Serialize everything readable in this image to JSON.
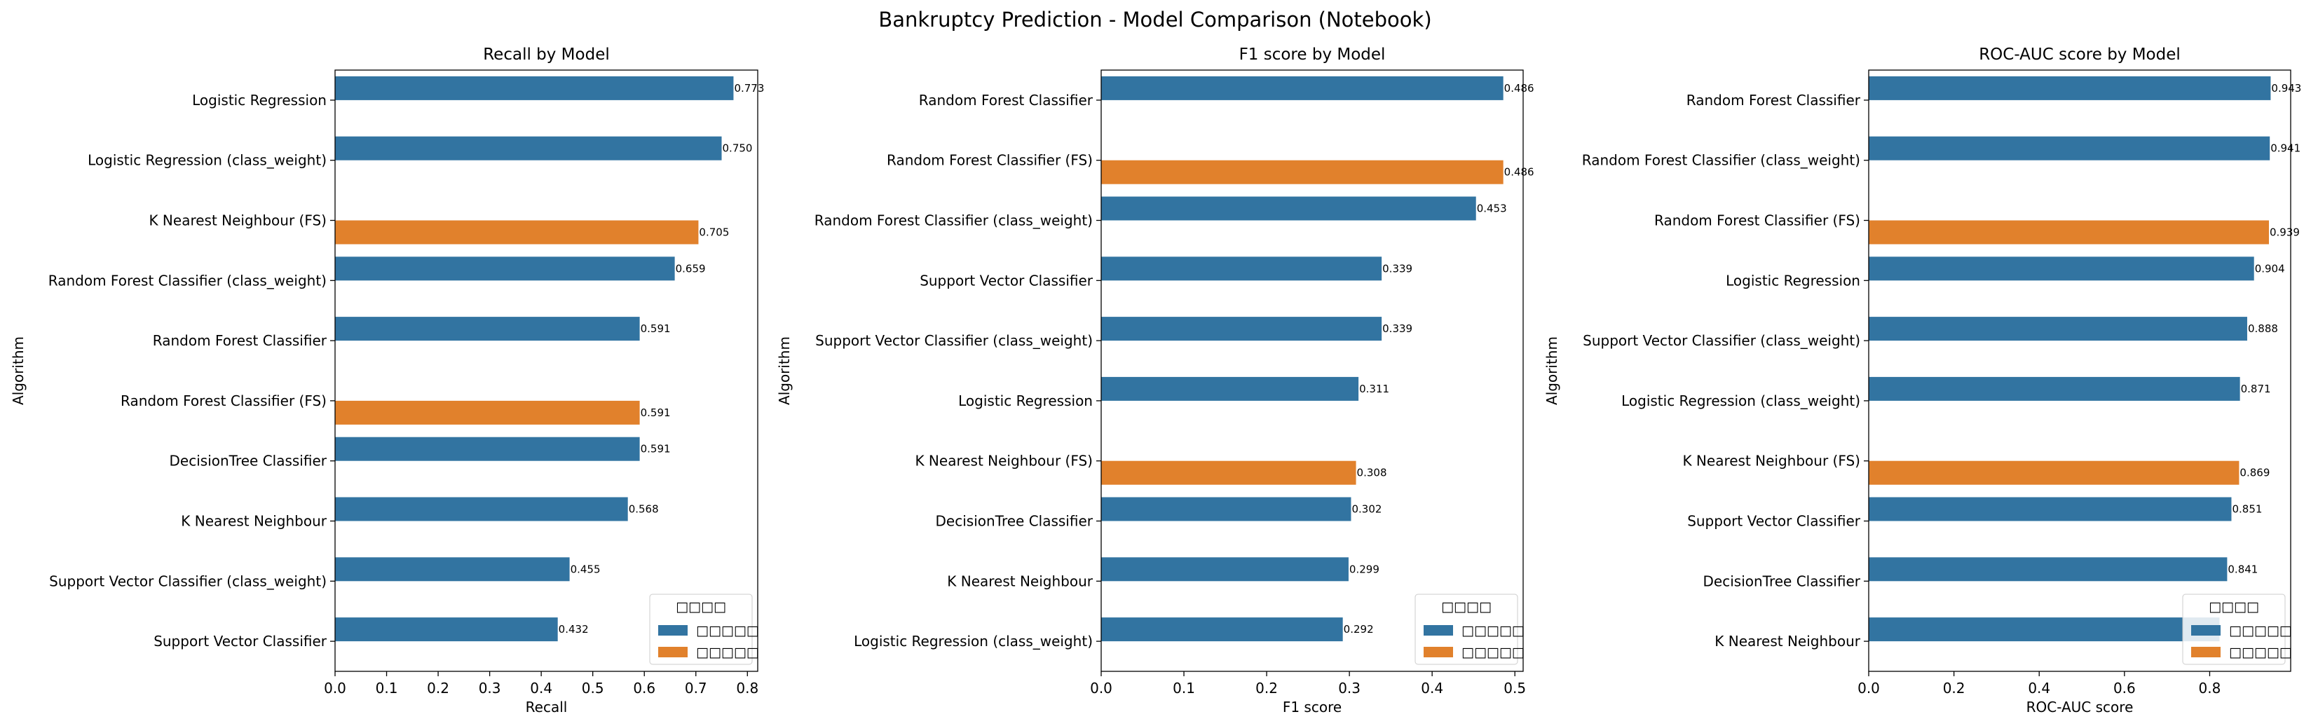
{
  "figure_title": "Bankruptcy Prediction - Model Comparison (Notebook)",
  "legend": {
    "title": "□□□□",
    "entries": [
      {
        "label": "□□□□□",
        "color": "#3274a1"
      },
      {
        "label": "□□□□□",
        "color": "#e1812c"
      }
    ],
    "placement": "lower right"
  },
  "chart_data": [
    {
      "type": "bar",
      "orientation": "horizontal",
      "title": "Recall by Model",
      "xlabel": "Recall",
      "ylabel": "Algorithm",
      "xlim": [
        0,
        0.82
      ],
      "xticks": [
        "0.0",
        "0.1",
        "0.2",
        "0.3",
        "0.4",
        "0.5",
        "0.6",
        "0.7",
        "0.8"
      ],
      "categories": [
        "Logistic Regression",
        "Logistic Regression (class_weight)",
        "K Nearest Neighbour (FS)",
        "Random Forest Classifier (class_weight)",
        "Random Forest Classifier",
        "Random Forest Classifier (FS)",
        "DecisionTree Classifier",
        "K Nearest Neighbour",
        "Support Vector Classifier (class_weight)",
        "Support Vector Classifier"
      ],
      "values": [
        0.773,
        0.75,
        0.705,
        0.659,
        0.591,
        0.591,
        0.591,
        0.568,
        0.455,
        0.432
      ],
      "value_labels": [
        "0.773",
        "0.750",
        "0.705",
        "0.659",
        "0.591",
        "0.591",
        "0.591",
        "0.568",
        "0.455",
        "0.432"
      ],
      "series_index": [
        0,
        0,
        1,
        0,
        0,
        1,
        0,
        0,
        0,
        0
      ]
    },
    {
      "type": "bar",
      "orientation": "horizontal",
      "title": "F1 score by Model",
      "xlabel": "F1 score",
      "ylabel": "Algorithm",
      "xlim": [
        0,
        0.51
      ],
      "xticks": [
        "0.0",
        "0.1",
        "0.2",
        "0.3",
        "0.4",
        "0.5"
      ],
      "categories": [
        "Random Forest Classifier",
        "Random Forest Classifier (FS)",
        "Random Forest Classifier (class_weight)",
        "Support Vector Classifier",
        "Support Vector Classifier (class_weight)",
        "Logistic Regression",
        "K Nearest Neighbour (FS)",
        "DecisionTree Classifier",
        "K Nearest Neighbour",
        "Logistic Regression (class_weight)"
      ],
      "values": [
        0.486,
        0.486,
        0.453,
        0.339,
        0.339,
        0.311,
        0.308,
        0.302,
        0.299,
        0.292
      ],
      "value_labels": [
        "0.486",
        "0.486",
        "0.453",
        "0.339",
        "0.339",
        "0.311",
        "0.308",
        "0.302",
        "0.299",
        "0.292"
      ],
      "series_index": [
        0,
        1,
        0,
        0,
        0,
        0,
        1,
        0,
        0,
        0
      ]
    },
    {
      "type": "bar",
      "orientation": "horizontal",
      "title": "ROC-AUC score by Model",
      "xlabel": "ROC-AUC score",
      "ylabel": "Algorithm",
      "xlim": [
        0,
        0.99
      ],
      "xticks": [
        "0.0",
        "0.2",
        "0.4",
        "0.6",
        "0.8"
      ],
      "categories": [
        "Random Forest Classifier",
        "Random Forest Classifier (class_weight)",
        "Random Forest Classifier (FS)",
        "Logistic Regression",
        "Support Vector Classifier (class_weight)",
        "Logistic Regression (class_weight)",
        "K Nearest Neighbour (FS)",
        "Support Vector Classifier",
        "DecisionTree Classifier",
        "K Nearest Neighbour"
      ],
      "values": [
        0.943,
        0.941,
        0.939,
        0.904,
        0.888,
        0.871,
        0.869,
        0.851,
        0.841,
        0.823
      ],
      "value_labels": [
        "0.943",
        "0.941",
        "0.939",
        "0.904",
        "0.888",
        "0.871",
        "0.869",
        "0.851",
        "0.841",
        ""
      ],
      "series_index": [
        0,
        0,
        1,
        0,
        0,
        0,
        1,
        0,
        0,
        0
      ]
    }
  ]
}
